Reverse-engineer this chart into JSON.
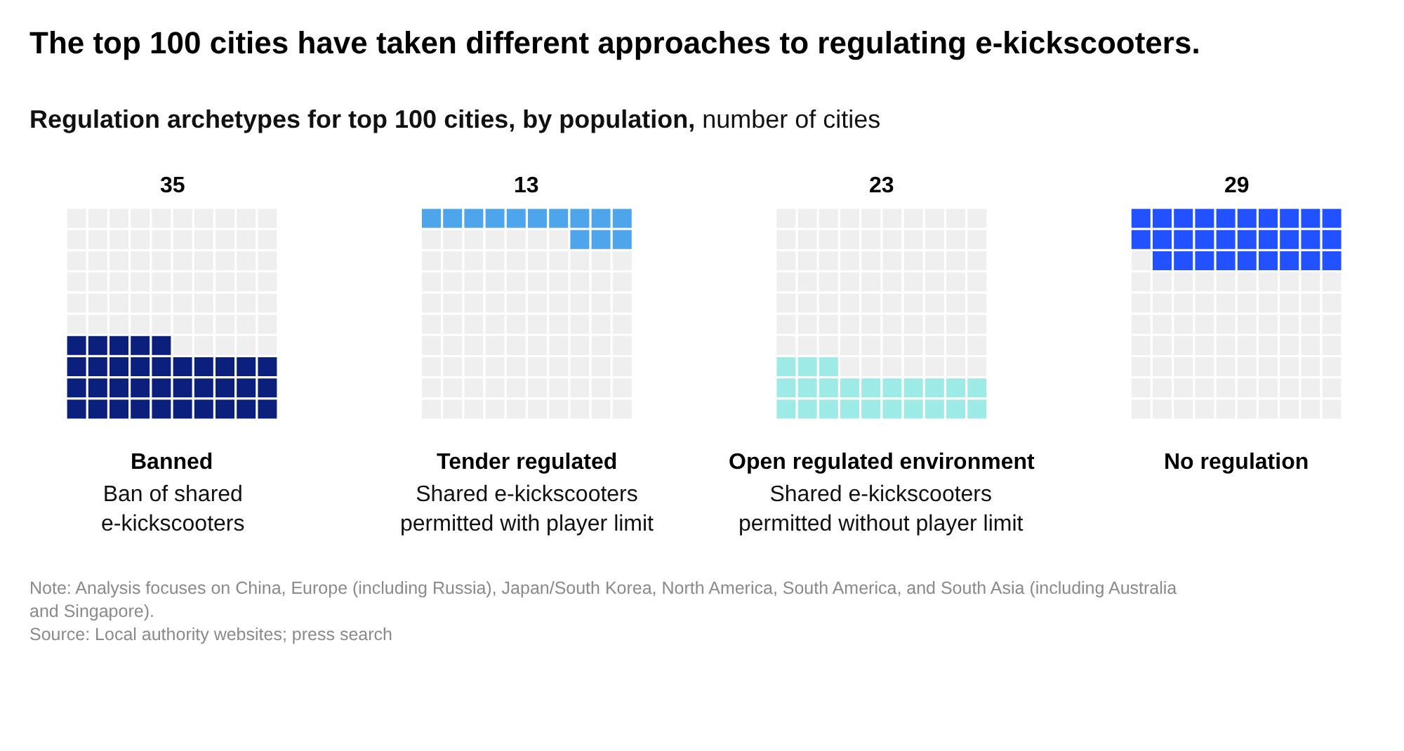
{
  "chart_data": {
    "type": "other",
    "title": "The top 100 cities have taken different approaches to regulating e-kickscooters.",
    "subtitle": "Regulation archetypes for top 100 cities, by population,",
    "ylabel": "number of cities",
    "categories": [
      "Banned",
      "Tender regulated",
      "Open regulated environment",
      "No regulation"
    ],
    "values": [
      35,
      13,
      23,
      29
    ],
    "colors": [
      "#0b1f7c",
      "#4ea5ec",
      "#9eeae6",
      "#2251ff"
    ],
    "data_labels": true,
    "annotations": [
      {
        "text": "Ban of shared\ne-kickscooters",
        "x": "Banned"
      },
      {
        "text": "Shared e-kickscooters\npermitted with player limit",
        "x": "Tender regulated"
      },
      {
        "text": "Shared e-kickscooters\npermitted without player limit",
        "x": "Open regulated environment"
      },
      "Note: Analysis focuses on China, Europe (including Russia), Japan/South Korea, North America, South America, and South Asia (including Australia\nand Singapore).",
      "Source: Local authority websites; press search"
    ]
  }
}
